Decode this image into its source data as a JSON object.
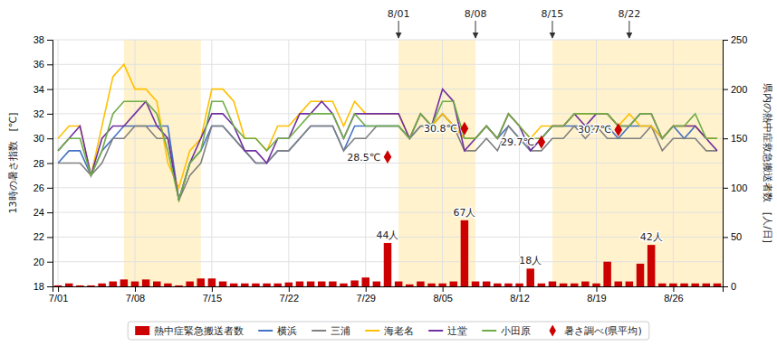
{
  "chart_data": {
    "type": "line",
    "categories": [
      "7/01",
      null,
      null,
      null,
      null,
      null,
      null,
      "7/08",
      null,
      null,
      null,
      null,
      null,
      null,
      "7/15",
      null,
      null,
      null,
      null,
      null,
      null,
      "7/22",
      null,
      null,
      null,
      null,
      null,
      null,
      "7/29",
      null,
      null,
      null,
      null,
      null,
      null,
      "8/05",
      null,
      null,
      null,
      null,
      null,
      null,
      "8/12",
      null,
      null,
      null,
      null,
      null,
      null,
      "8/19",
      null,
      null,
      null,
      null,
      null,
      null,
      "8/26",
      null,
      null,
      null,
      null
    ],
    "ylabel": "13時の暑さ指数　[℃]",
    "y2label": "県内の熱中症救急搬送者数　[人/日]",
    "ylim": [
      18,
      38
    ],
    "yticks": [
      18,
      20,
      22,
      24,
      26,
      28,
      30,
      32,
      34,
      36,
      38
    ],
    "y2lim": [
      0,
      250
    ],
    "y2ticks": [
      0,
      50,
      100,
      150,
      200,
      250
    ],
    "grid": true,
    "legend": "bottom",
    "data_labels": true,
    "series": [
      {
        "name": "熱中症緊急搬送者数",
        "type": "bar",
        "axis": "y2",
        "color": "#cc0000",
        "values": [
          1,
          3,
          1,
          1,
          3,
          5,
          7,
          5,
          7,
          5,
          3,
          1,
          5,
          8,
          8,
          5,
          3,
          3,
          3,
          3,
          3,
          4,
          5,
          5,
          5,
          5,
          3,
          6,
          9,
          5,
          44,
          5,
          2,
          5,
          3,
          3,
          5,
          67,
          5,
          5,
          3,
          3,
          3,
          18,
          3,
          5,
          3,
          3,
          5,
          3,
          25,
          5,
          5,
          23,
          42,
          3,
          3,
          3,
          3,
          3,
          3
        ],
        "value_labels": [
          null,
          null,
          null,
          null,
          null,
          null,
          null,
          null,
          null,
          null,
          null,
          null,
          null,
          null,
          null,
          null,
          null,
          null,
          null,
          null,
          null,
          null,
          null,
          null,
          null,
          null,
          null,
          null,
          null,
          null,
          "44人",
          null,
          null,
          null,
          null,
          null,
          null,
          "67人",
          null,
          null,
          null,
          null,
          null,
          "18人",
          null,
          null,
          null,
          null,
          null,
          null,
          null,
          null,
          null,
          null,
          "42人",
          null,
          null,
          null,
          null,
          null,
          null
        ]
      },
      {
        "name": "横浜",
        "type": "line",
        "color": "#4472c4",
        "values": [
          28,
          29,
          29,
          27,
          29,
          30,
          31,
          31,
          31,
          31,
          31,
          25,
          28,
          29,
          31,
          31,
          30,
          29,
          28,
          28,
          29,
          29,
          30,
          31,
          31,
          31,
          29,
          31,
          31,
          31,
          31,
          31,
          30,
          31,
          31,
          32,
          31,
          30,
          30,
          31,
          30,
          31,
          30,
          29,
          30,
          31,
          31,
          31,
          31,
          31,
          31,
          30,
          31,
          31,
          31,
          30,
          31,
          30,
          31,
          30,
          30
        ]
      },
      {
        "name": "三浦",
        "type": "line",
        "color": "#808080",
        "values": [
          28,
          28,
          28,
          27,
          28,
          30,
          30,
          31,
          31,
          30,
          30,
          25,
          27,
          28,
          31,
          31,
          30,
          29,
          28,
          28,
          29,
          29,
          30,
          31,
          31,
          31,
          29,
          30,
          30,
          31,
          31,
          31,
          30,
          31,
          31,
          32,
          31,
          29,
          29,
          30,
          29,
          31,
          30,
          29,
          29,
          30,
          30,
          31,
          30,
          31,
          30,
          30,
          30,
          30,
          31,
          29,
          30,
          30,
          30,
          29,
          29
        ]
      },
      {
        "name": "海老名",
        "type": "line",
        "color": "#ffc000",
        "values": [
          30,
          31,
          31,
          27,
          31,
          35,
          36,
          34,
          34,
          33,
          28,
          26,
          29,
          30,
          34,
          34,
          33,
          30,
          30,
          29,
          31,
          31,
          32,
          33,
          33,
          33,
          31,
          33,
          32,
          32,
          32,
          32,
          30,
          32,
          31,
          32,
          31,
          30,
          30,
          31,
          30,
          32,
          31,
          30,
          31,
          31,
          31,
          32,
          32,
          32,
          32,
          31,
          32,
          31,
          31,
          30,
          31,
          31,
          31,
          30,
          30
        ]
      },
      {
        "name": "辻堂",
        "type": "line",
        "color": "#7030a0",
        "values": [
          29,
          30,
          31,
          27,
          30,
          31,
          31,
          32,
          33,
          31,
          30,
          25,
          28,
          30,
          32,
          32,
          31,
          29,
          29,
          28,
          30,
          30,
          32,
          32,
          33,
          32,
          30,
          32,
          32,
          32,
          32,
          32,
          30,
          32,
          31,
          34,
          33,
          29,
          30,
          31,
          30,
          32,
          31,
          29,
          30,
          31,
          31,
          32,
          31,
          32,
          32,
          31,
          31,
          32,
          32,
          30,
          31,
          31,
          31,
          30,
          29
        ]
      },
      {
        "name": "小田原",
        "type": "line",
        "color": "#70ad47",
        "values": [
          29,
          30,
          30,
          27,
          29,
          32,
          33,
          33,
          33,
          32,
          29,
          25,
          28,
          29,
          33,
          33,
          31,
          30,
          30,
          29,
          30,
          30,
          31,
          32,
          32,
          32,
          30,
          32,
          31,
          31,
          31,
          31,
          30,
          32,
          31,
          33,
          33,
          30,
          30,
          31,
          30,
          32,
          31,
          30,
          30,
          31,
          31,
          32,
          32,
          32,
          32,
          31,
          31,
          32,
          32,
          30,
          31,
          31,
          32,
          30,
          30
        ]
      },
      {
        "name": "暑さ調べ(県平均)",
        "type": "scatter",
        "marker": "diamond",
        "color": "#cc0000",
        "values": [
          null,
          null,
          null,
          null,
          null,
          null,
          null,
          null,
          null,
          null,
          null,
          null,
          null,
          null,
          null,
          null,
          null,
          null,
          null,
          null,
          null,
          null,
          null,
          null,
          null,
          null,
          null,
          null,
          null,
          null,
          28.5,
          null,
          null,
          null,
          null,
          null,
          null,
          30.8,
          null,
          null,
          null,
          null,
          null,
          null,
          29.7,
          null,
          null,
          null,
          null,
          null,
          null,
          30.7,
          null,
          null,
          null,
          null,
          null,
          null,
          null,
          null,
          null
        ],
        "value_labels": [
          null,
          null,
          null,
          null,
          null,
          null,
          null,
          null,
          null,
          null,
          null,
          null,
          null,
          null,
          null,
          null,
          null,
          null,
          null,
          null,
          null,
          null,
          null,
          null,
          null,
          null,
          null,
          null,
          null,
          null,
          "28.5℃",
          null,
          null,
          null,
          null,
          null,
          null,
          "30.8℃",
          null,
          null,
          null,
          null,
          null,
          null,
          "29.7℃",
          null,
          null,
          null,
          null,
          null,
          null,
          "30.7℃",
          null,
          null,
          null,
          null,
          null,
          null,
          null,
          null,
          null
        ]
      }
    ],
    "shaded_bands": {
      "color": "#fff2cc",
      "ranges": [
        [
          6,
          13
        ],
        [
          31,
          38
        ],
        [
          45,
          52
        ],
        [
          52,
          60.5
        ]
      ]
    },
    "annotations": [
      {
        "text": "8/01",
        "x": 31
      },
      {
        "text": "8/08",
        "x": 38
      },
      {
        "text": "8/15",
        "x": 45
      },
      {
        "text": "8/22",
        "x": 52
      }
    ]
  }
}
